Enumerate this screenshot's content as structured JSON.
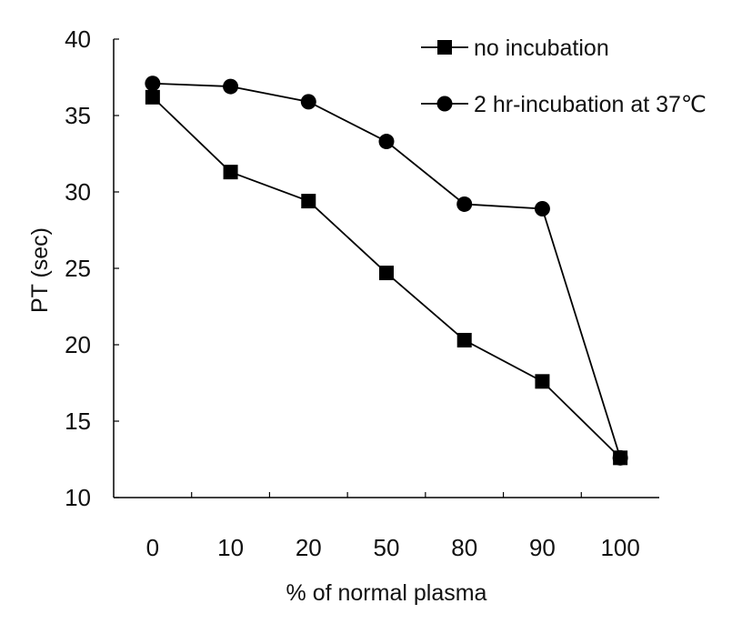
{
  "chart_data": {
    "type": "line",
    "title": "",
    "xlabel": "% of normal plasma",
    "ylabel": "PT (sec)",
    "categories": [
      "0",
      "10",
      "20",
      "50",
      "80",
      "90",
      "100"
    ],
    "ylim": [
      10,
      40
    ],
    "yticks": [
      "10",
      "15",
      "20",
      "25",
      "30",
      "35",
      "40"
    ],
    "grid": false,
    "legend_position": "top-right",
    "series": [
      {
        "name": "no incubation",
        "marker": "square",
        "color": "#000000",
        "values": [
          36.2,
          31.3,
          29.4,
          24.7,
          20.3,
          17.6,
          12.6
        ]
      },
      {
        "name": "2 hr-incubation at 37℃",
        "marker": "circle",
        "color": "#000000",
        "values": [
          37.1,
          36.9,
          35.9,
          33.3,
          29.2,
          28.9,
          12.6
        ]
      }
    ]
  }
}
